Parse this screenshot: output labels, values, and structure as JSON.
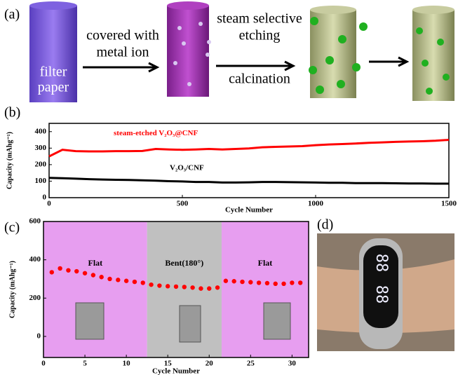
{
  "panels": {
    "a": "(a)",
    "b": "(b)",
    "c": "(c)",
    "d": "(d)"
  },
  "scheme": {
    "cylinder_label": [
      "filter",
      "paper"
    ],
    "step1": [
      "covered with",
      "metal ion"
    ],
    "step2": [
      "steam selective",
      "etching"
    ],
    "step3": "calcination"
  },
  "chart_data": [
    {
      "type": "line",
      "x_label": "Cycle Number",
      "y_label": "Capacity (mAhg⁻¹)",
      "x": [
        0,
        50,
        100,
        150,
        200,
        250,
        300,
        350,
        400,
        450,
        500,
        550,
        600,
        650,
        700,
        750,
        800,
        850,
        900,
        950,
        1000,
        1050,
        1100,
        1150,
        1200,
        1250,
        1300,
        1350,
        1400,
        1450,
        1500
      ],
      "series": [
        {
          "name": "steam-etched V₂O₃@CNF",
          "color": "#ff0000",
          "values": [
            250,
            290,
            282,
            280,
            280,
            282,
            282,
            283,
            295,
            292,
            290,
            292,
            295,
            292,
            295,
            298,
            305,
            308,
            310,
            312,
            318,
            322,
            325,
            328,
            332,
            335,
            338,
            340,
            342,
            345,
            350
          ]
        },
        {
          "name": "V₂O₃/CNF",
          "color": "#000000",
          "values": [
            120,
            118,
            115,
            112,
            110,
            108,
            107,
            105,
            103,
            100,
            98,
            95,
            95,
            92,
            92,
            93,
            95,
            95,
            94,
            93,
            92,
            90,
            90,
            88,
            88,
            88,
            87,
            86,
            86,
            85,
            85
          ]
        }
      ],
      "xlim": [
        0,
        1500
      ],
      "xticks": [
        0,
        500,
        1000,
        1500
      ],
      "ylim": [
        0,
        450
      ],
      "yticks": [
        0,
        100,
        200,
        300,
        400
      ]
    },
    {
      "type": "scatter",
      "x_label": "Cycle Number",
      "y_label": "Capacity (mAhg⁻¹)",
      "regions": [
        {
          "from": 0,
          "to": 12.5,
          "color": "#e79ef0",
          "label": "Flat"
        },
        {
          "from": 12.5,
          "to": 21.5,
          "color": "#c0c0c0",
          "label": "Bent(180°)"
        },
        {
          "from": 21.5,
          "to": 32,
          "color": "#e79ef0",
          "label": "Flat"
        }
      ],
      "x": [
        1,
        2,
        3,
        4,
        5,
        6,
        7,
        8,
        9,
        10,
        11,
        12,
        13,
        14,
        15,
        16,
        17,
        18,
        19,
        20,
        21,
        22,
        23,
        24,
        25,
        26,
        27,
        28,
        29,
        30,
        31
      ],
      "series": [
        {
          "color": "#ff0000",
          "values": [
            335,
            355,
            345,
            340,
            330,
            320,
            310,
            300,
            295,
            290,
            285,
            280,
            270,
            265,
            262,
            260,
            258,
            255,
            250,
            250,
            255,
            290,
            288,
            285,
            283,
            280,
            278,
            275,
            275,
            280,
            280
          ]
        }
      ],
      "xlim": [
        0,
        32
      ],
      "xticks": [
        0,
        5,
        10,
        15,
        20,
        25,
        30
      ],
      "ylim": [
        -110,
        600
      ],
      "yticks": [
        0,
        200,
        400,
        600
      ]
    }
  ]
}
